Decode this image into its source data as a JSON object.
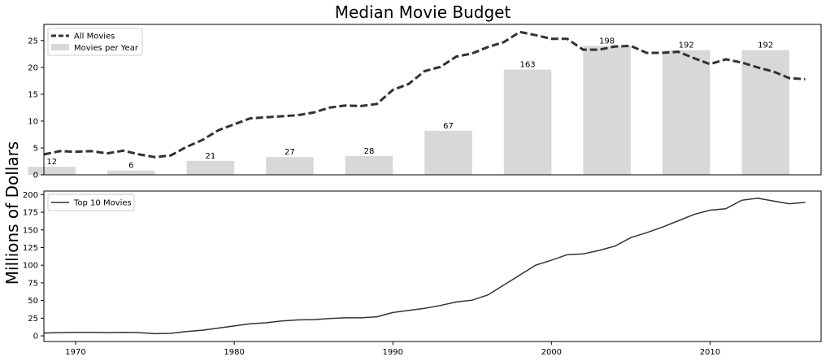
{
  "chart_data": [
    {
      "type": "line+bar",
      "title": "Median Movie Budget",
      "ylabel": "Millions of Dollars",
      "xlim": [
        1968,
        2017
      ],
      "ylim": [
        0,
        28
      ],
      "yticks": [
        0,
        5,
        10,
        15,
        20,
        25
      ],
      "legend": {
        "placement": "top-left",
        "entries": [
          "All Movies",
          "Movies per Year"
        ]
      },
      "line_series": {
        "name": "All Movies",
        "style": "dashed",
        "color": "#333333",
        "x": [
          1968,
          1969,
          1970,
          1971,
          1972,
          1973,
          1974,
          1975,
          1976,
          1977,
          1978,
          1979,
          1980,
          1981,
          1982,
          1983,
          1984,
          1985,
          1986,
          1987,
          1988,
          1989,
          1990,
          1991,
          1992,
          1993,
          1994,
          1995,
          1996,
          1997,
          1998,
          1999,
          2000,
          2001,
          2002,
          2003,
          2004,
          2005,
          2006,
          2007,
          2008,
          2009,
          2010,
          2011,
          2012,
          2013,
          2014,
          2015,
          2016
        ],
        "y": [
          3.8,
          4.4,
          4.3,
          4.4,
          4.0,
          4.5,
          3.8,
          3.3,
          3.6,
          5.2,
          6.5,
          8.3,
          9.4,
          10.5,
          10.7,
          10.9,
          11.1,
          11.6,
          12.5,
          12.9,
          12.8,
          13.2,
          15.8,
          16.9,
          19.3,
          20.1,
          22.0,
          22.6,
          23.8,
          24.7,
          26.6,
          26.0,
          25.3,
          25.3,
          23.3,
          23.3,
          23.9,
          24.0,
          22.7,
          22.7,
          22.9,
          21.7,
          20.6,
          21.5,
          20.9,
          20.0,
          19.2,
          18.0,
          17.8
        ]
      },
      "bar_series": {
        "name": "Movies per Year",
        "color": "#d8d8d8",
        "x": [
          1968.5,
          1973.5,
          1978.5,
          1983.5,
          1988.5,
          1993.5,
          1998.5,
          2003.5,
          2008.5,
          2013.5
        ],
        "height": [
          1.5,
          0.8,
          2.6,
          3.3,
          3.5,
          8.2,
          19.6,
          24.0,
          23.2,
          23.2
        ],
        "labels": [
          "12",
          "6",
          "21",
          "27",
          "28",
          "67",
          "163",
          "198",
          "192",
          "192"
        ]
      }
    },
    {
      "type": "line",
      "xlim": [
        1968,
        2017
      ],
      "ylim": [
        -8,
        205
      ],
      "yticks": [
        0,
        25,
        50,
        75,
        100,
        125,
        150,
        175,
        200
      ],
      "xticks": [
        1970,
        1980,
        1990,
        2000,
        2010
      ],
      "xtick_labels": [
        "1970",
        "1980",
        "1990",
        "2000",
        "2010"
      ],
      "legend": {
        "placement": "top-left",
        "entries": [
          "Top 10 Movies"
        ]
      },
      "series": [
        {
          "name": "Top 10 Movies",
          "color": "#333333",
          "x": [
            1968,
            1969,
            1970,
            1971,
            1972,
            1973,
            1974,
            1975,
            1976,
            1977,
            1978,
            1979,
            1980,
            1981,
            1982,
            1983,
            1984,
            1985,
            1986,
            1987,
            1988,
            1989,
            1990,
            1991,
            1992,
            1993,
            1994,
            1995,
            1996,
            1997,
            1998,
            1999,
            2000,
            2001,
            2002,
            2003,
            2004,
            2005,
            2006,
            2007,
            2008,
            2009,
            2010,
            2011,
            2012,
            2013,
            2014,
            2015,
            2016
          ],
          "y": [
            4,
            4.5,
            5,
            5,
            4.5,
            5,
            4.5,
            3,
            3.5,
            6,
            8,
            11,
            14,
            17,
            18.5,
            21,
            22.5,
            23,
            24.5,
            25.5,
            25.5,
            27,
            33,
            36,
            39,
            43,
            48,
            50.5,
            58,
            72,
            86,
            100,
            107,
            115,
            116,
            121,
            127,
            139,
            146,
            154,
            163,
            172,
            178,
            180,
            192,
            195,
            191,
            187,
            189
          ]
        }
      ]
    }
  ]
}
